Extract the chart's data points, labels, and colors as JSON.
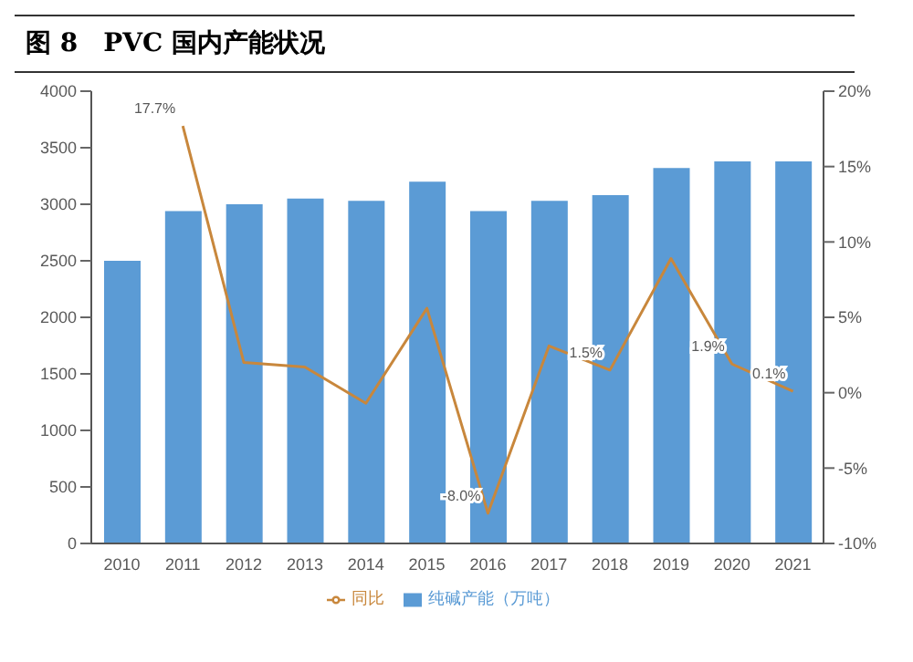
{
  "chart_data": {
    "type": "bar",
    "title": "图 8　PVC 国内产能状况",
    "categories": [
      "2010",
      "2011",
      "2012",
      "2013",
      "2014",
      "2015",
      "2016",
      "2017",
      "2018",
      "2019",
      "2020",
      "2021"
    ],
    "series": [
      {
        "name": "纯碱产能（万吨）",
        "color": "#5b9bd5",
        "values": [
          2500,
          2940,
          3000,
          3050,
          3030,
          3200,
          2940,
          3030,
          3080,
          3320,
          3380,
          3380
        ]
      },
      {
        "name": "同比",
        "type": "line",
        "axis": "y2",
        "color": "#c8873c",
        "values": [
          null,
          17.7,
          2.0,
          1.7,
          -0.7,
          5.6,
          -8.0,
          3.1,
          1.5,
          8.9,
          1.9,
          0.1
        ],
        "value_labels": [
          null,
          "17.7%",
          null,
          null,
          null,
          null,
          "-8.0%",
          null,
          "1.5%",
          null,
          "1.9%",
          "0.1%"
        ]
      }
    ],
    "ylim": [
      0,
      4000
    ],
    "yticks": [
      0,
      500,
      1000,
      1500,
      2000,
      2500,
      3000,
      3500,
      4000
    ],
    "y2lim": [
      -10,
      20
    ],
    "y2ticks": [
      {
        "value": -10,
        "label": "-10%"
      },
      {
        "value": -5,
        "label": "-5%"
      },
      {
        "value": 0,
        "label": "0%"
      },
      {
        "value": 5,
        "label": "5%"
      },
      {
        "value": 10,
        "label": "10%"
      },
      {
        "value": 15,
        "label": "15%"
      },
      {
        "value": 20,
        "label": "20%"
      }
    ],
    "grid": false,
    "legend": "bottom",
    "marker": "none"
  }
}
